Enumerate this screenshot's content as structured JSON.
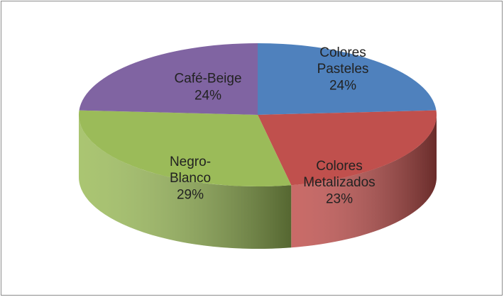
{
  "chart_data": {
    "type": "pie",
    "categories": [
      "Colores Pasteles",
      "Colores Metalizados",
      "Negro-Blanco",
      "Café-Beige"
    ],
    "values": [
      24,
      23,
      29,
      24
    ],
    "value_labels": [
      "24%",
      "23%",
      "29%",
      "24%"
    ],
    "colors": [
      "#4f81bd",
      "#c0504d",
      "#9bbb59",
      "#8064a2"
    ]
  }
}
